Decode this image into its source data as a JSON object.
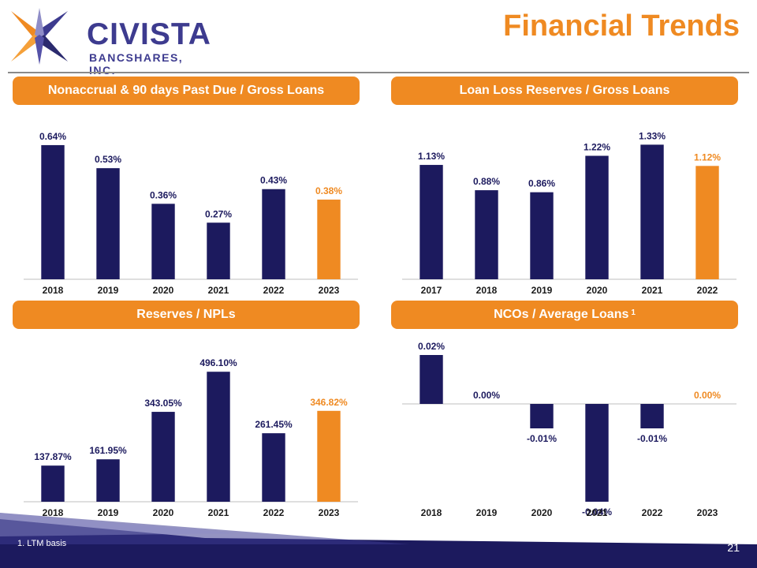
{
  "header": {
    "logo_name": "CIVISTA",
    "logo_sub": "BANCSHARES, INC.",
    "title": "Financial Trends"
  },
  "colors": {
    "accent_orange": "#ef8a22",
    "navy": "#1c1a5e",
    "logo_purple": "#3d3b8f"
  },
  "footer": {
    "footnote": "1. LTM basis",
    "page_number": "21"
  },
  "chart_data": [
    {
      "type": "bar",
      "title": "Nonaccrual & 90 days Past Due / Gross Loans",
      "title_note": "",
      "categories": [
        "2018",
        "2019",
        "2020",
        "2021",
        "2022",
        "2023"
      ],
      "values": [
        0.64,
        0.53,
        0.36,
        0.27,
        0.43,
        0.38
      ],
      "labels": [
        "0.64%",
        "0.53%",
        "0.36%",
        "0.27%",
        "0.43%",
        "0.38%"
      ],
      "highlight_last": true,
      "ylim": [
        0,
        0.7
      ]
    },
    {
      "type": "bar",
      "title": "Loan Loss Reserves / Gross Loans",
      "title_note": "",
      "categories": [
        "2017",
        "2018",
        "2019",
        "2020",
        "2021",
        "2022"
      ],
      "values": [
        1.13,
        0.88,
        0.86,
        1.22,
        1.33,
        1.12
      ],
      "labels": [
        "1.13%",
        "0.88%",
        "0.86%",
        "1.22%",
        "1.33%",
        "1.12%"
      ],
      "highlight_last": true,
      "ylim": [
        0,
        1.45
      ]
    },
    {
      "type": "bar",
      "title": "Reserves / NPLs",
      "title_note": "",
      "categories": [
        "2018",
        "2019",
        "2020",
        "2021",
        "2022",
        "2023"
      ],
      "values": [
        137.87,
        161.95,
        343.05,
        496.1,
        261.45,
        346.82
      ],
      "labels": [
        "137.87%",
        "161.95%",
        "343.05%",
        "496.10%",
        "261.45%",
        "346.82%"
      ],
      "highlight_last": true,
      "ylim": [
        0,
        560
      ]
    },
    {
      "type": "bar",
      "title": "NCOs / Average Loans",
      "title_note": "1",
      "categories": [
        "2018",
        "2019",
        "2020",
        "2021",
        "2022",
        "2023"
      ],
      "values": [
        0.02,
        0.0,
        -0.01,
        -0.04,
        -0.01,
        0.0
      ],
      "labels": [
        "0.02%",
        "0.00%",
        "-0.01%",
        "-0.04%",
        "-0.01%",
        "0.00%"
      ],
      "highlight_last": true,
      "ylim": [
        -0.04,
        0.02
      ]
    }
  ]
}
